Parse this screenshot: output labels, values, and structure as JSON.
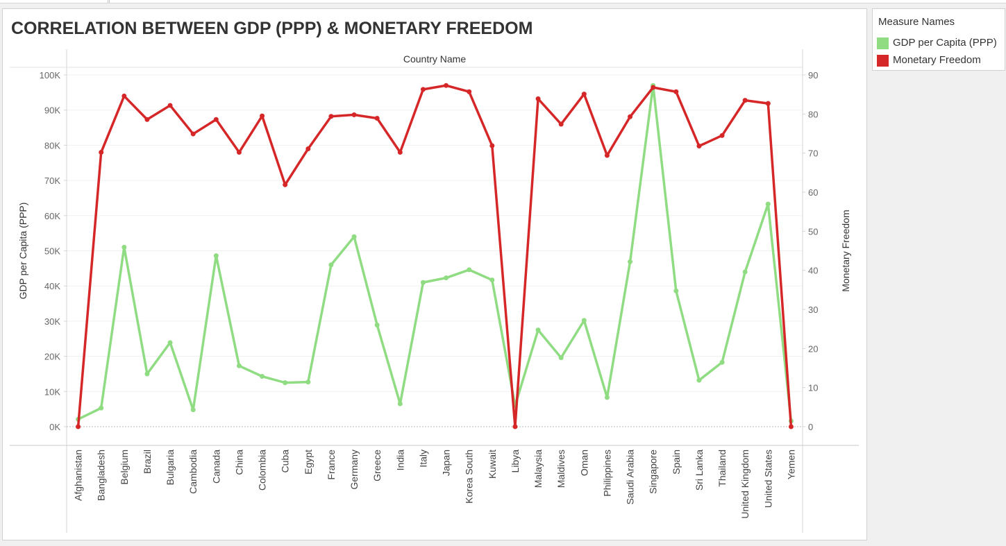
{
  "title": "CORRELATION BETWEEN GDP (PPP) & MONETARY FREEDOM",
  "legend": {
    "title": "Measure Names",
    "items": [
      {
        "label": "GDP per Capita (PPP)",
        "color": "#8fdc82"
      },
      {
        "label": "Monetary Freedom",
        "color": "#d62728"
      }
    ]
  },
  "chart_data": {
    "type": "line",
    "header": "Country Name",
    "ylabel_left": "GDP per Capita (PPP)",
    "ylabel_right": "Monetary Freedom",
    "ylim_left": [
      0,
      100000
    ],
    "ylim_right": [
      0,
      90
    ],
    "yticks_left": [
      "100K",
      "90K",
      "80K",
      "70K",
      "60K",
      "50K",
      "40K",
      "30K",
      "20K",
      "10K",
      "0K"
    ],
    "yticks_right": [
      "90",
      "80",
      "70",
      "60",
      "50",
      "40",
      "30",
      "20",
      "10",
      "0"
    ],
    "categories": [
      "Afghanistan",
      "Bangladesh",
      "Belgium",
      "Brazil",
      "Bulgaria",
      "Cambodia",
      "Canada",
      "China",
      "Colombia",
      "Cuba",
      "Egypt",
      "France",
      "Germany",
      "Greece",
      "India",
      "Italy",
      "Japan",
      "Korea South",
      "Kuwait",
      "Libya",
      "Malaysia",
      "Maldives",
      "Oman",
      "Philippines",
      "Saudi Arabia",
      "Singapore",
      "Spain",
      "Sri Lanka",
      "Thailand",
      "United Kingdom",
      "United States",
      "Yemen"
    ],
    "series": [
      {
        "name": "GDP per Capita (PPP)",
        "axis": "left",
        "color": "#8fdc82",
        "values": [
          2100,
          5300,
          51000,
          15000,
          23900,
          4800,
          48600,
          17300,
          14300,
          12500,
          12700,
          46000,
          54000,
          28900,
          6500,
          41000,
          42300,
          44600,
          41700,
          6000,
          27500,
          19600,
          30200,
          8300,
          46900,
          97000,
          38600,
          13200,
          18300,
          44000,
          63300,
          1600
        ]
      },
      {
        "name": "Monetary Freedom",
        "axis": "right",
        "color": "#d62728",
        "values": [
          0,
          70.2,
          84.6,
          78.6,
          82.2,
          74.9,
          78.6,
          70.2,
          79.5,
          61.9,
          71.1,
          79.4,
          79.8,
          78.9,
          70.2,
          86.3,
          87.3,
          85.7,
          71.9,
          0,
          83.9,
          77.4,
          85.1,
          69.4,
          79.3,
          86.8,
          85.7,
          71.8,
          74.5,
          83.5,
          82.7,
          0
        ]
      }
    ]
  }
}
